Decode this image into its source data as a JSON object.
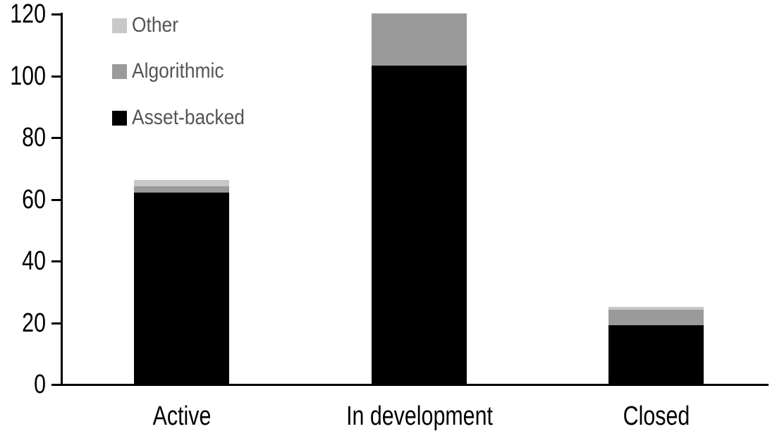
{
  "chart_data": {
    "type": "bar",
    "stacked": true,
    "title": "",
    "xlabel": "",
    "ylabel": "",
    "categories": [
      "Active",
      "In development",
      "Closed"
    ],
    "series": [
      {
        "name": "Asset-backed",
        "color": "#000000",
        "values": [
          62,
          103,
          19
        ]
      },
      {
        "name": "Algorithmic",
        "color": "#9a9a9a",
        "values": [
          2,
          17,
          5
        ]
      },
      {
        "name": "Other",
        "color": "#c8c8c8",
        "values": [
          2,
          0,
          1
        ]
      }
    ],
    "totals": [
      66,
      120,
      25
    ],
    "ylim": [
      0,
      120
    ],
    "ytick_step": 20,
    "yticks": [
      "0",
      "20",
      "40",
      "60",
      "80",
      "100",
      "120"
    ],
    "legend_order": [
      "Other",
      "Algorithmic",
      "Asset-backed"
    ],
    "legend_position": "top-left",
    "grid": false,
    "colors": {
      "axis": "#000000",
      "tick_label": "#000000",
      "category_label": "#000000",
      "legend_text": "#545454",
      "background": "#ffffff"
    }
  }
}
